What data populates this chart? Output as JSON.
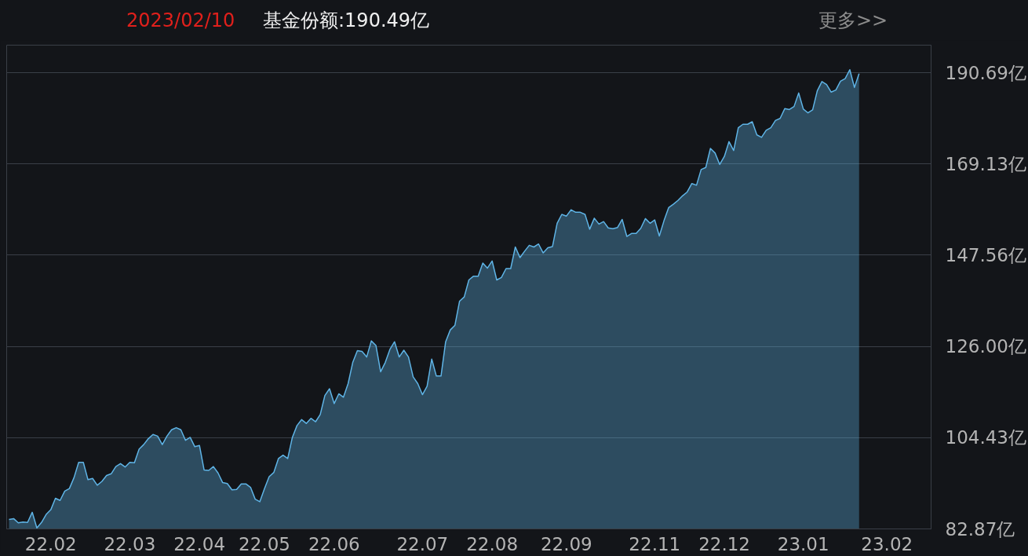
{
  "chart_data": {
    "type": "area",
    "title": "2023/02/10",
    "subtitle": "基金份额:190.49亿",
    "annotations": [
      "更多>>"
    ],
    "categories": [
      null,
      null,
      null,
      null,
      null,
      null,
      null,
      null,
      null,
      "22.02",
      null,
      null,
      null,
      null,
      null,
      null,
      null,
      null,
      null,
      null,
      null,
      null,
      null,
      null,
      null,
      null,
      "22.03",
      null,
      null,
      null,
      null,
      null,
      null,
      null,
      null,
      null,
      null,
      null,
      null,
      null,
      null,
      "22.04",
      null,
      null,
      null,
      null,
      null,
      null,
      null,
      null,
      null,
      null,
      null,
      null,
      null,
      "22.05",
      null,
      null,
      null,
      null,
      null,
      null,
      null,
      null,
      null,
      null,
      null,
      null,
      null,
      null,
      "22.06",
      null,
      null,
      null,
      null,
      null,
      null,
      null,
      null,
      null,
      null,
      null,
      null,
      null,
      null,
      null,
      null,
      null,
      null,
      "22.07",
      null,
      null,
      null,
      null,
      null,
      null,
      null,
      null,
      null,
      null,
      null,
      null,
      null,
      null,
      "22.08",
      null,
      null,
      null,
      null,
      null,
      null,
      null,
      null,
      null,
      null,
      null,
      null,
      null,
      null,
      null,
      "22.09",
      null,
      null,
      null,
      null,
      null,
      null,
      null,
      null,
      null,
      null,
      null,
      null,
      null,
      null,
      null,
      null,
      null,
      null,
      "22.11",
      null,
      null,
      null,
      null,
      null,
      null,
      null,
      null,
      null,
      null,
      null,
      null,
      null,
      null,
      "22.12",
      null,
      null,
      null,
      null,
      null,
      null,
      null,
      null,
      null,
      null,
      null,
      null,
      null,
      null,
      null,
      null,
      "23.01",
      null,
      null,
      null,
      null,
      null,
      null,
      null,
      null,
      null,
      null,
      null,
      null,
      null,
      null,
      null,
      null,
      null,
      "23.02",
      null,
      null,
      null,
      null,
      null,
      null,
      null,
      null,
      null
    ],
    "series": [
      {
        "color": "#5fb4e6",
        "values": [
          85.1,
          85.3,
          84.3,
          84.5,
          84.4,
          86.8,
          83.1,
          84.4,
          86.3,
          87.4,
          90.1,
          89.6,
          91.8,
          92.4,
          95.0,
          98.6,
          98.6,
          94.5,
          94.8,
          93.2,
          94.1,
          95.5,
          95.9,
          97.6,
          98.3,
          97.5,
          98.6,
          98.5,
          101.7,
          102.8,
          104.2,
          105.2,
          104.8,
          102.8,
          104.8,
          106.3,
          106.8,
          106.3,
          103.8,
          104.5,
          102.3,
          102.6,
          96.8,
          96.7,
          97.6,
          96.1,
          93.8,
          93.6,
          92.1,
          92.2,
          93.5,
          93.5,
          92.7,
          89.9,
          89.3,
          92.4,
          95.2,
          96.2,
          99.5,
          100.3,
          99.5,
          104.5,
          107.3,
          108.7,
          107.8,
          109.0,
          108.2,
          109.9,
          114.4,
          116.0,
          112.5,
          114.8,
          114.0,
          117.2,
          122.2,
          125.0,
          124.8,
          123.5,
          127.3,
          126.2,
          120.0,
          122.2,
          125.3,
          127.1,
          123.5,
          125.1,
          123.5,
          118.8,
          117.2,
          114.6,
          116.6,
          123.0,
          119.0,
          119.0,
          127.1,
          129.9,
          131.0,
          136.7,
          137.7,
          141.7,
          142.6,
          142.6,
          145.7,
          144.5,
          146.2,
          141.7,
          142.3,
          144.4,
          144.4,
          149.5,
          147.0,
          148.5,
          149.9,
          149.5,
          150.2,
          148.1,
          149.3,
          149.6,
          155.1,
          157.2,
          156.8,
          158.3,
          157.7,
          157.7,
          157.2,
          153.7,
          156.3,
          154.9,
          155.5,
          154.0,
          153.8,
          154.1,
          156.0,
          152.0,
          152.7,
          152.7,
          153.9,
          156.2,
          155.1,
          155.9,
          152.1,
          155.7,
          158.8,
          159.6,
          160.5,
          161.6,
          162.5,
          164.5,
          164.1,
          167.8,
          168.3,
          172.8,
          171.7,
          169.0,
          170.9,
          174.4,
          172.3,
          177.7,
          178.5,
          178.5,
          179.1,
          176.0,
          175.4,
          177.1,
          177.7,
          179.4,
          179.9,
          182.2,
          182.0,
          182.7,
          185.9,
          182.1,
          181.2,
          181.9,
          186.4,
          188.6,
          187.9,
          186.1,
          186.6,
          188.7,
          189.3,
          191.4,
          187.2,
          190.49,
          null,
          null,
          null,
          null,
          null,
          null,
          null,
          null,
          null,
          null,
          null,
          null,
          null,
          null,
          null
        ]
      }
    ],
    "ylim": [
      82.87,
      197.2
    ],
    "yticks": [
      {
        "value": 82.87,
        "label": "82.87亿"
      },
      {
        "value": 104.43,
        "label": "104.43亿"
      },
      {
        "value": 126.0,
        "label": "126.00亿"
      },
      {
        "value": 147.56,
        "label": "147.56亿"
      },
      {
        "value": 169.13,
        "label": "169.13亿"
      },
      {
        "value": 190.69,
        "label": "190.69亿"
      }
    ],
    "grid": "y"
  }
}
